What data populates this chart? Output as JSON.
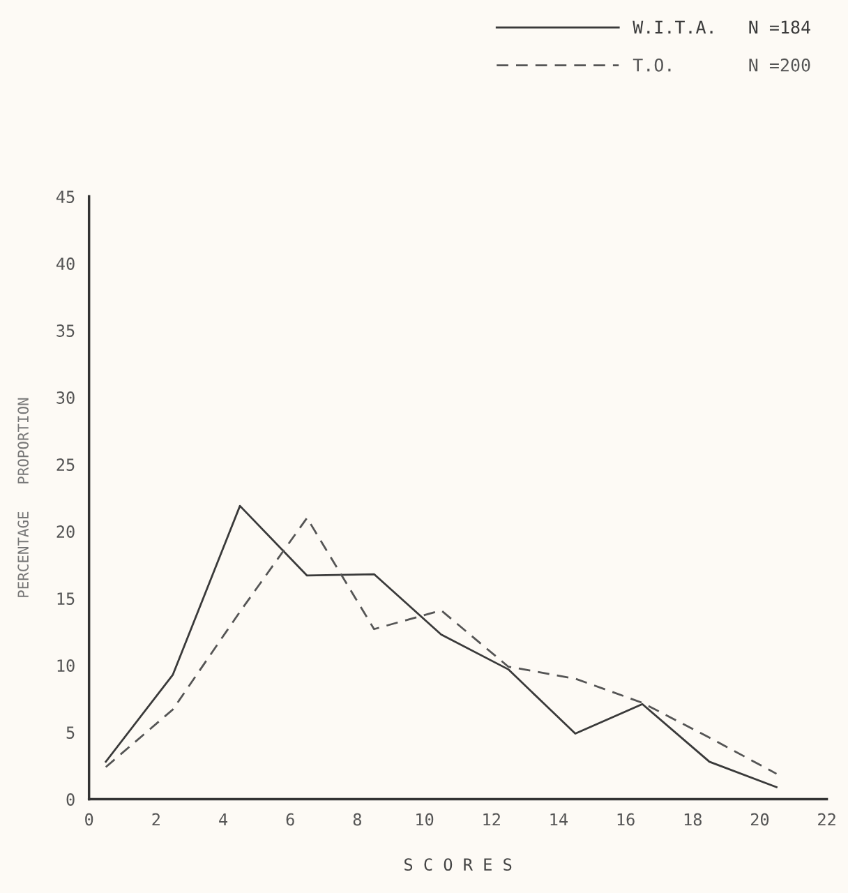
{
  "chart_data": {
    "type": "line",
    "xlabel": "S C O R E S",
    "ylabel": "PERCENTAGE   PROPORTION",
    "xlim": [
      0,
      22
    ],
    "xticks": [
      0,
      2,
      4,
      6,
      8,
      10,
      12,
      14,
      16,
      18,
      20,
      22
    ],
    "ylim": [
      0,
      45
    ],
    "yticks": [
      0,
      5,
      10,
      15,
      20,
      25,
      30,
      35,
      40,
      45
    ],
    "x": [
      0.5,
      2.5,
      4.5,
      6.5,
      8.5,
      10.5,
      12.5,
      14.5,
      16.5,
      18.5,
      20.5
    ],
    "legend": "top right",
    "grid": false,
    "series": [
      {
        "name": "W.I.T.A.   N =184",
        "color": "#3a3a3a",
        "line_style": "solid",
        "values": [
          2.8,
          9.3,
          21.9,
          16.7,
          16.8,
          12.3,
          9.7,
          4.9,
          7.1,
          2.8,
          0.9
        ]
      },
      {
        "name": "T.O.       N =200",
        "color": "#555555",
        "line_style": "dashed",
        "values": [
          2.4,
          6.7,
          14.0,
          21.0,
          12.7,
          14.1,
          9.9,
          9.0,
          7.2,
          4.6,
          1.9
        ]
      }
    ]
  }
}
